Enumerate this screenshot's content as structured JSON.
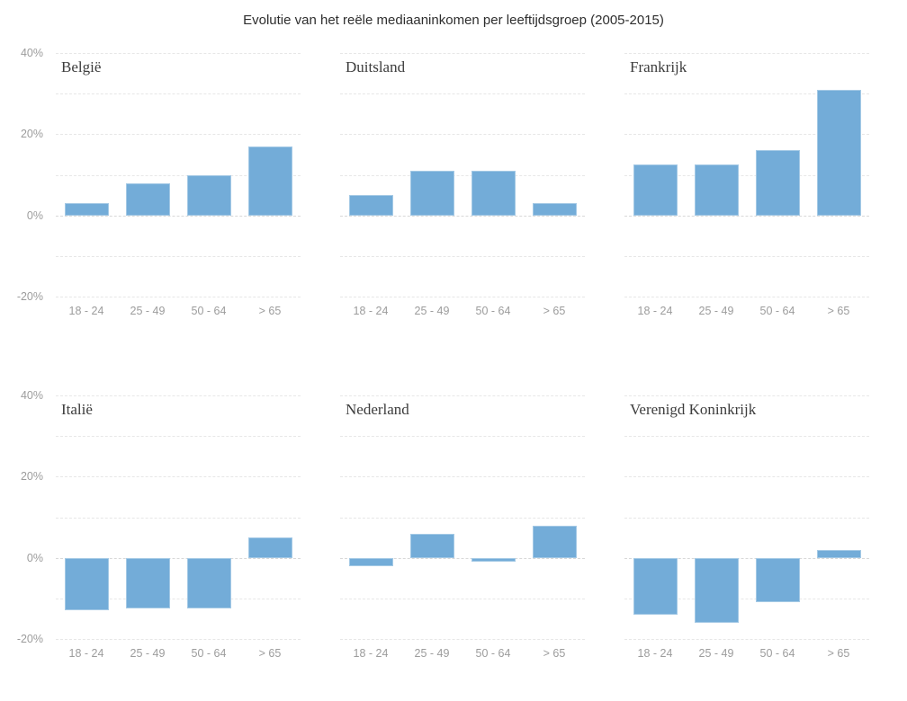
{
  "colors": {
    "bar": "#73acd8",
    "grid": "#e7e7e7",
    "zero_line": "#d8d8d8",
    "axis_text": "#9c9c9c",
    "panel_title_text": "#3c3c3c",
    "title_text": "#2e2e2e",
    "background": "#ffffff"
  },
  "y_axis": {
    "tick_labels": [
      "40%",
      "20%",
      "0%",
      "-20%"
    ],
    "ticks_pct": [
      40,
      20,
      0,
      -20
    ]
  },
  "chart_data": {
    "type": "bar",
    "title": "Evolutie van het reële mediaaninkomen per leeftijdsgroep (2005-2015)",
    "xlabel": "",
    "ylabel": "",
    "unit": "%",
    "categories": [
      "18 - 24",
      "25 - 49",
      "50 - 64",
      "> 65"
    ],
    "ylim": [
      -20,
      40
    ],
    "gridlines_pct": [
      40,
      30,
      20,
      10,
      0,
      -10,
      -20
    ],
    "grid": "on",
    "legend": "none",
    "layout": "small-multiples 3x2",
    "panels": [
      {
        "country": "België",
        "values": [
          3,
          8,
          10,
          17
        ]
      },
      {
        "country": "Duitsland",
        "values": [
          5,
          11,
          11,
          3
        ]
      },
      {
        "country": "Frankrijk",
        "values": [
          12.5,
          12.5,
          16,
          31
        ]
      },
      {
        "country": "Italië",
        "values": [
          -13,
          -12.5,
          -12.5,
          5
        ]
      },
      {
        "country": "Nederland",
        "values": [
          -2,
          6,
          -1,
          8
        ]
      },
      {
        "country": "Verenigd Koninkrijk",
        "values": [
          -14,
          -16,
          -11,
          2
        ]
      }
    ]
  }
}
